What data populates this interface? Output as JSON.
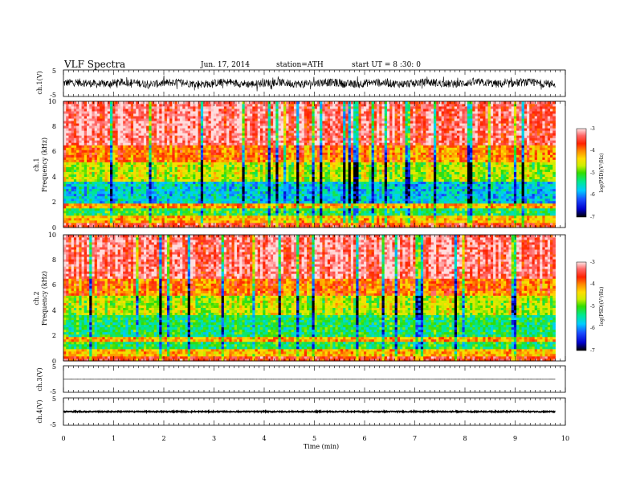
{
  "header": {
    "title": "VLF Spectra",
    "date": "Jun. 17, 2014",
    "station": "station=ATH",
    "start": "start UT =  8 :30: 0"
  },
  "chart_data": [
    {
      "type": "line",
      "name": "ch1-waveform",
      "ylabel": "ch.1(V)",
      "ylim": [
        -5,
        5
      ],
      "yticks": [
        "5",
        "-5"
      ],
      "xlim": [
        0,
        10
      ],
      "approx_amplitude_V": 1.5
    },
    {
      "type": "heatmap",
      "name": "ch1-spectrogram",
      "ylabel": "ch.1\nFrequency (kHz)",
      "ylim": [
        0,
        10
      ],
      "yticks": [
        "0",
        "2",
        "4",
        "6",
        "8",
        "10"
      ],
      "xlim": [
        0,
        9.8
      ],
      "colorbar": {
        "label": "log(PSD)(V²/Hz)",
        "ticks": [
          "-3",
          "-4",
          "-5",
          "-6",
          "-7"
        ],
        "range": [
          -7,
          -3
        ]
      },
      "approx_logpsd_profile": [
        {
          "freq_kHz": [
            0,
            0.3
          ],
          "logpsd": -3.6
        },
        {
          "freq_kHz": [
            0.3,
            1.0
          ],
          "logpsd": -4.3
        },
        {
          "freq_kHz": [
            1.0,
            1.6
          ],
          "logpsd": -5.3
        },
        {
          "freq_kHz": [
            1.6,
            2.0
          ],
          "logpsd": -4.2
        },
        {
          "freq_kHz": [
            2.0,
            3.6
          ],
          "logpsd": -5.8
        },
        {
          "freq_kHz": [
            3.6,
            5.2
          ],
          "logpsd": -4.8
        },
        {
          "freq_kHz": [
            5.2,
            6.5
          ],
          "logpsd": -4.0
        },
        {
          "freq_kHz": [
            6.5,
            10
          ],
          "logpsd": -3.3
        }
      ]
    },
    {
      "type": "heatmap",
      "name": "ch2-spectrogram",
      "ylabel": "ch.2\nFrequency (kHz)",
      "ylim": [
        0,
        10
      ],
      "yticks": [
        "0",
        "2",
        "4",
        "6",
        "8",
        "10"
      ],
      "xlim": [
        0,
        9.8
      ],
      "colorbar": {
        "label": "log(PSD)(V²/Hz)",
        "ticks": [
          "-3",
          "-4",
          "-5",
          "-6",
          "-7"
        ],
        "range": [
          -7,
          -3
        ]
      },
      "approx_logpsd_profile": [
        {
          "freq_kHz": [
            0,
            0.3
          ],
          "logpsd": -3.6
        },
        {
          "freq_kHz": [
            0.3,
            1.0
          ],
          "logpsd": -4.3
        },
        {
          "freq_kHz": [
            1.0,
            1.6
          ],
          "logpsd": -5.3
        },
        {
          "freq_kHz": [
            1.6,
            2.0
          ],
          "logpsd": -4.2
        },
        {
          "freq_kHz": [
            2.0,
            3.6
          ],
          "logpsd": -5.4
        },
        {
          "freq_kHz": [
            3.6,
            5.2
          ],
          "logpsd": -4.8
        },
        {
          "freq_kHz": [
            5.2,
            6.5
          ],
          "logpsd": -4.0
        },
        {
          "freq_kHz": [
            6.5,
            10
          ],
          "logpsd": -3.3
        }
      ]
    },
    {
      "type": "line",
      "name": "ch3-waveform",
      "ylabel": "ch.3(V)",
      "ylim": [
        -5,
        5
      ],
      "yticks": [
        "5",
        "-5"
      ],
      "xlim": [
        0,
        10
      ],
      "approx_level_V": 0,
      "approx_amplitude_V": 0.05
    },
    {
      "type": "line",
      "name": "ch4-waveform",
      "ylabel": "ch.4(V)",
      "ylim": [
        -5,
        5
      ],
      "yticks": [
        "5",
        "-5"
      ],
      "xlim": [
        0,
        10
      ],
      "approx_level_V": 0,
      "approx_amplitude_V": 0.2
    }
  ],
  "xaxis": {
    "label": "Time  (min)",
    "ticks": [
      "0",
      "1",
      "2",
      "3",
      "4",
      "5",
      "6",
      "7",
      "8",
      "9",
      "10"
    ]
  },
  "colors": {
    "colormap": [
      "#000000",
      "#0000cc",
      "#1a4dff",
      "#00ccff",
      "#00e890",
      "#33dd00",
      "#ccee00",
      "#ffdd00",
      "#ff8800",
      "#ff2200",
      "#ff6666",
      "#ffdddd"
    ]
  }
}
